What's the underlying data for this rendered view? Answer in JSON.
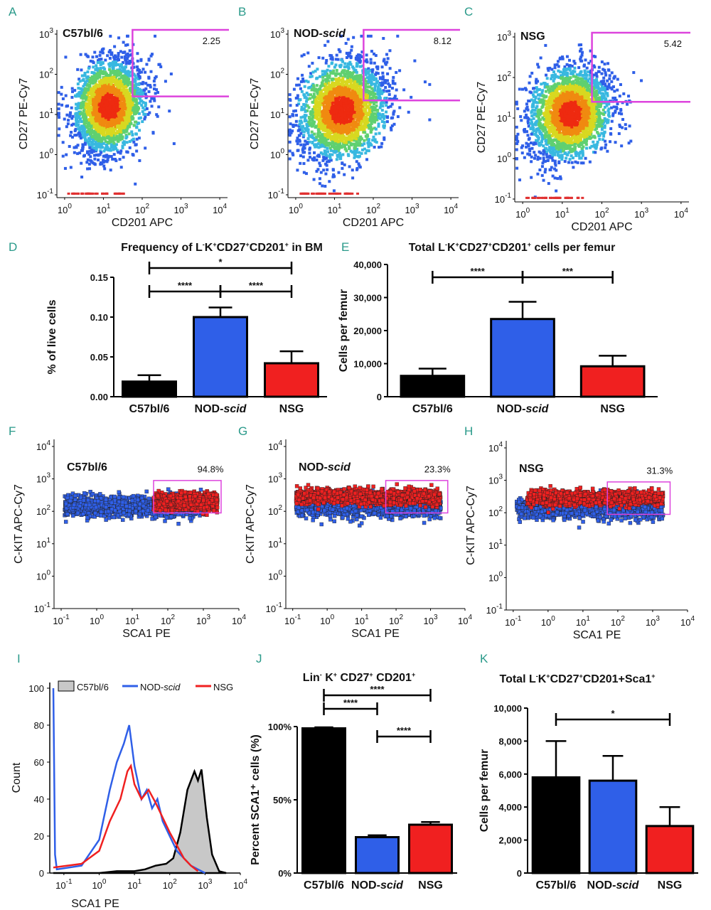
{
  "colors": {
    "panel_label": "#2a9a8a",
    "gate": "#dd44dd",
    "black": "#000000",
    "blue": "#2f5fe8",
    "red": "#f02020",
    "grey": "#c8c8c8"
  },
  "panels": [
    {
      "letter": "A",
      "strain": "C57bl/6"
    },
    {
      "letter": "B",
      "strain_main": "NOD-",
      "strain_ital": "scid"
    },
    {
      "letter": "C",
      "strain": "NSG"
    },
    {
      "letter": "D"
    },
    {
      "letter": "E"
    },
    {
      "letter": "F",
      "strain": "C57bl/6"
    },
    {
      "letter": "G",
      "strain_main": "NOD-",
      "strain_ital": "scid"
    },
    {
      "letter": "H",
      "strain": "NSG"
    },
    {
      "letter": "I"
    },
    {
      "letter": "J"
    },
    {
      "letter": "K"
    }
  ],
  "chart_data": [
    {
      "id": "A",
      "type": "scatter",
      "title": "C57bl/6",
      "xlabel": "CD201 APC",
      "ylabel": "CD27 PE-Cy7",
      "x_ticks": [
        "0",
        "1",
        "2",
        "3",
        "4"
      ],
      "y_ticks": [
        "-1",
        "0",
        "1",
        "2",
        "3"
      ],
      "gate_percent": "2.25"
    },
    {
      "id": "B",
      "type": "scatter",
      "title": "NOD-scid",
      "xlabel": "CD201 APC",
      "ylabel": "CD27 PE-Cy7",
      "x_ticks": [
        "0",
        "1",
        "2",
        "3",
        "4"
      ],
      "y_ticks": [
        "-1",
        "0",
        "1",
        "2",
        "3"
      ],
      "gate_percent": "8.12"
    },
    {
      "id": "C",
      "type": "scatter",
      "title": "NSG",
      "xlabel": "CD201 APC",
      "ylabel": "CD27 PE-Cy7",
      "x_ticks": [
        "0",
        "1",
        "2",
        "3",
        "4"
      ],
      "y_ticks": [
        "-1",
        "0",
        "1",
        "2",
        "3"
      ],
      "gate_percent": "5.42"
    },
    {
      "id": "D",
      "type": "bar",
      "title": "Frequency of L",
      "title_sup1": "-",
      "title_mid": "K",
      "title_sup2": "+",
      "title_mid2": "CD27",
      "title_sup3": "+",
      "title_mid3": "CD201",
      "title_sup4": "+",
      "title_end": " in BM",
      "ylabel": "% of live cells",
      "categories": [
        "C57bl/6",
        "NOD-scid",
        "NSG"
      ],
      "values": [
        0.019,
        0.1,
        0.042
      ],
      "errors": [
        0.008,
        0.012,
        0.015
      ],
      "ylim": [
        0,
        0.15
      ],
      "yticks": [
        "0.00",
        "0.05",
        "0.10",
        "0.15"
      ],
      "significance": [
        {
          "from": 0,
          "to": 1,
          "label": "****"
        },
        {
          "from": 1,
          "to": 2,
          "label": "****"
        },
        {
          "from": 0,
          "to": 2,
          "label": "*"
        }
      ]
    },
    {
      "id": "E",
      "type": "bar",
      "title": "Total L",
      "title_sup1": "-",
      "title_mid": "K",
      "title_sup2": "+",
      "title_mid2": "CD27",
      "title_sup3": "+",
      "title_mid3": "CD201",
      "title_sup4": "+",
      "title_end": " cells per femur",
      "ylabel": "Cells per femur",
      "categories": [
        "C57bl/6",
        "NOD-scid",
        "NSG"
      ],
      "values": [
        6300,
        23500,
        9200
      ],
      "errors": [
        2200,
        5200,
        3200
      ],
      "ylim": [
        0,
        40000
      ],
      "yticks": [
        "0",
        "10,000",
        "20,000",
        "30,000",
        "40,000"
      ],
      "significance": [
        {
          "from": 0,
          "to": 1,
          "label": "****"
        },
        {
          "from": 1,
          "to": 2,
          "label": "***"
        }
      ]
    },
    {
      "id": "F",
      "type": "scatter",
      "title": "C57bl/6",
      "xlabel": "SCA1 PE",
      "ylabel": "C-KIT APC-Cy7",
      "x_ticks": [
        "-1",
        "0",
        "1",
        "2",
        "3",
        "4"
      ],
      "y_ticks": [
        "-1",
        "0",
        "1",
        "2",
        "3",
        "4"
      ],
      "gate_percent": "94.8%"
    },
    {
      "id": "G",
      "type": "scatter",
      "title": "NOD-scid",
      "xlabel": "SCA1 PE",
      "ylabel": "C-KIT APC-Cy7",
      "x_ticks": [
        "-1",
        "0",
        "1",
        "2",
        "3",
        "4"
      ],
      "y_ticks": [
        "-1",
        "0",
        "1",
        "2",
        "3",
        "4"
      ],
      "gate_percent": "23.3%"
    },
    {
      "id": "H",
      "type": "scatter",
      "title": "NSG",
      "xlabel": "SCA1 PE",
      "ylabel": "C-KIT APC-Cy7",
      "x_ticks": [
        "-1",
        "0",
        "1",
        "2",
        "3",
        "4"
      ],
      "y_ticks": [
        "-1",
        "0",
        "1",
        "2",
        "3",
        "4"
      ],
      "gate_percent": "31.3%"
    },
    {
      "id": "I",
      "type": "line",
      "xlabel": "SCA1 PE",
      "ylabel": "Count",
      "ylim": [
        0,
        100
      ],
      "yticks": [
        "0",
        "20",
        "40",
        "60",
        "80",
        "100"
      ],
      "x_ticks": [
        "-1",
        "0",
        "1",
        "2",
        "3",
        "4"
      ],
      "legend": [
        {
          "name": "C57bl/6",
          "color": "#c8c8c8"
        },
        {
          "name_main": "NOD-",
          "name_ital": "scid",
          "color": "#2f5fe8"
        },
        {
          "name": "NSG",
          "color": "#f02020"
        }
      ],
      "series": [
        {
          "name": "C57bl/6",
          "x": [
            -1.3,
            0,
            0.5,
            1.0,
            1.3,
            1.6,
            1.9,
            2.1,
            2.3,
            2.5,
            2.7,
            2.8,
            2.9,
            3.05,
            3.2,
            3.4,
            3.6
          ],
          "values": [
            0,
            0,
            1,
            1,
            2,
            4,
            5,
            8,
            22,
            45,
            55,
            50,
            56,
            30,
            10,
            1,
            0
          ]
        },
        {
          "name": "NOD-scid",
          "x": [
            -1.3,
            -1.25,
            -1.2,
            -0.5,
            0,
            0.3,
            0.5,
            0.7,
            0.85,
            1.0,
            1.2,
            1.35,
            1.5,
            1.65,
            1.8,
            2.0,
            2.2,
            2.4,
            2.6,
            2.8,
            3.0
          ],
          "values": [
            100,
            10,
            2,
            4,
            18,
            45,
            60,
            70,
            80,
            58,
            40,
            45,
            35,
            40,
            28,
            20,
            12,
            8,
            4,
            2,
            0
          ]
        },
        {
          "name": "NSG",
          "x": [
            -1.3,
            -0.5,
            0,
            0.3,
            0.6,
            0.8,
            0.9,
            1.0,
            1.2,
            1.4,
            1.6,
            1.8,
            2.0,
            2.2,
            2.4,
            2.6,
            2.8
          ],
          "values": [
            3,
            5,
            12,
            28,
            40,
            55,
            58,
            48,
            40,
            45,
            38,
            30,
            22,
            15,
            8,
            4,
            1
          ]
        }
      ]
    },
    {
      "id": "J",
      "type": "bar",
      "title": "Lin",
      "title_sup1": "-",
      "title_mid": " K",
      "title_sup2": "+",
      "title_mid2": " CD27",
      "title_sup3": "+",
      "title_mid3": " CD201",
      "title_sup4": "+",
      "title_end": "",
      "ylabel": "Percent SCA1⁺ cells (%)",
      "categories": [
        "C57bl/6",
        "NOD-scid",
        "NSG"
      ],
      "values": [
        98.8,
        24.5,
        33.0
      ],
      "errors": [
        0.7,
        1.3,
        1.8
      ],
      "ylim": [
        0,
        100
      ],
      "yticks": [
        "0%",
        "50%",
        "100%"
      ],
      "significance": [
        {
          "from": 0,
          "to": 1,
          "label": "****"
        },
        {
          "from": 1,
          "to": 2,
          "label": "****"
        },
        {
          "from": 0,
          "to": 2,
          "label": "****"
        }
      ]
    },
    {
      "id": "K",
      "type": "bar",
      "title": "Total L",
      "title_sup1": "-",
      "title_mid": "K",
      "title_sup2": "+",
      "title_mid2": "CD27",
      "title_sup3": "+",
      "title_mid3": "CD201+Sca1",
      "title_sup4": "+",
      "title_end": "",
      "ylabel": "Cells per femur",
      "categories": [
        "C57bl/6",
        "NOD-scid",
        "NSG"
      ],
      "values": [
        5800,
        5600,
        2850
      ],
      "errors": [
        2200,
        1500,
        1150
      ],
      "ylim": [
        0,
        10000
      ],
      "yticks": [
        "0",
        "2,000",
        "4,000",
        "6,000",
        "8,000",
        "10,000"
      ],
      "significance": [
        {
          "from": 0,
          "to": 2,
          "label": "*"
        }
      ]
    }
  ]
}
